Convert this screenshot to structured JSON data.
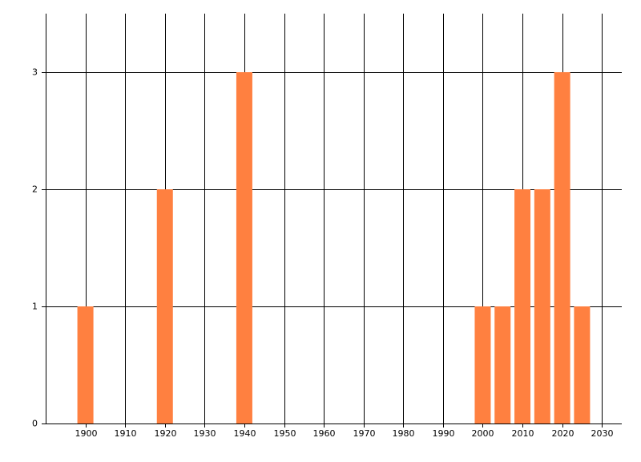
{
  "chart_data": {
    "type": "bar",
    "x": [
      1900,
      1920,
      1940,
      2000,
      2005,
      2010,
      2015,
      2020,
      2025
    ],
    "values": [
      1,
      2,
      3,
      1,
      1,
      2,
      2,
      3,
      1
    ],
    "color": "#ff8040",
    "xlim": [
      1890,
      2035
    ],
    "xticks": [
      1900,
      1910,
      1920,
      1930,
      1940,
      1950,
      1960,
      1970,
      1980,
      1990,
      2000,
      2010,
      2020,
      2030
    ],
    "ylim": [
      0,
      3.5
    ],
    "yticks": [
      0,
      1,
      2,
      3
    ],
    "grid": true
  }
}
